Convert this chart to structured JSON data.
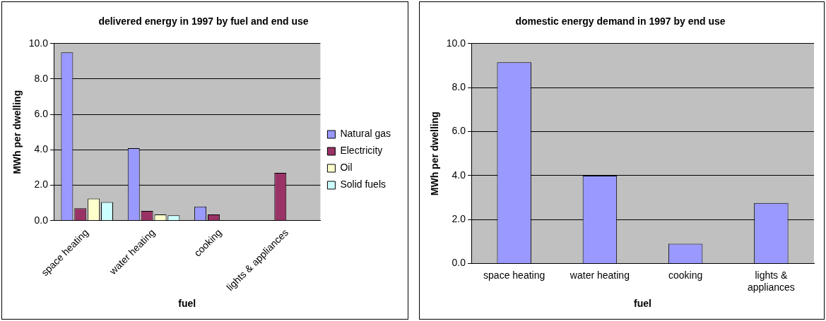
{
  "chart_data": [
    {
      "type": "bar",
      "title": "delivered energy in 1997 by fuel and end use",
      "xlabel": "fuel",
      "ylabel": "MWh per dwelling",
      "categories": [
        "space heating",
        "water heating",
        "cooking",
        "lights & appliances"
      ],
      "series": [
        {
          "name": "Natural gas",
          "color": "#9999ff",
          "values": [
            9.5,
            4.1,
            0.8,
            null
          ]
        },
        {
          "name": "Electricity",
          "color": "#993366",
          "values": [
            0.7,
            0.55,
            0.35,
            2.7
          ]
        },
        {
          "name": "Oil",
          "color": "#ffffcc",
          "values": [
            1.25,
            0.35,
            null,
            null
          ]
        },
        {
          "name": "Solid fuels",
          "color": "#ccffff",
          "values": [
            1.05,
            0.3,
            null,
            null
          ]
        }
      ],
      "ylim": [
        0,
        10
      ],
      "yticks": [
        {
          "value": 0,
          "label": "0.0"
        },
        {
          "value": 2,
          "label": "2.0"
        },
        {
          "value": 4,
          "label": "4.0"
        },
        {
          "value": 6,
          "label": "6.0"
        },
        {
          "value": 8,
          "label": "8.0"
        },
        {
          "value": 10,
          "label": "10.0"
        }
      ],
      "grid": "y",
      "legend": "right"
    },
    {
      "type": "bar",
      "title": "domestic energy demand in 1997 by end use",
      "xlabel": "fuel",
      "ylabel": "MWh per dwelling",
      "categories": [
        "space heating",
        "water heating",
        "cooking",
        "lights & appliances"
      ],
      "values": [
        9.15,
        4.0,
        0.9,
        2.75
      ],
      "color": "#9999ff",
      "ylim": [
        0,
        10
      ],
      "yticks": [
        {
          "value": 0,
          "label": "0.0"
        },
        {
          "value": 2,
          "label": "2.0"
        },
        {
          "value": 4,
          "label": "4.0"
        },
        {
          "value": 6,
          "label": "6.0"
        },
        {
          "value": 8,
          "label": "8.0"
        },
        {
          "value": 10,
          "label": "10.0"
        }
      ],
      "grid": "y"
    }
  ]
}
